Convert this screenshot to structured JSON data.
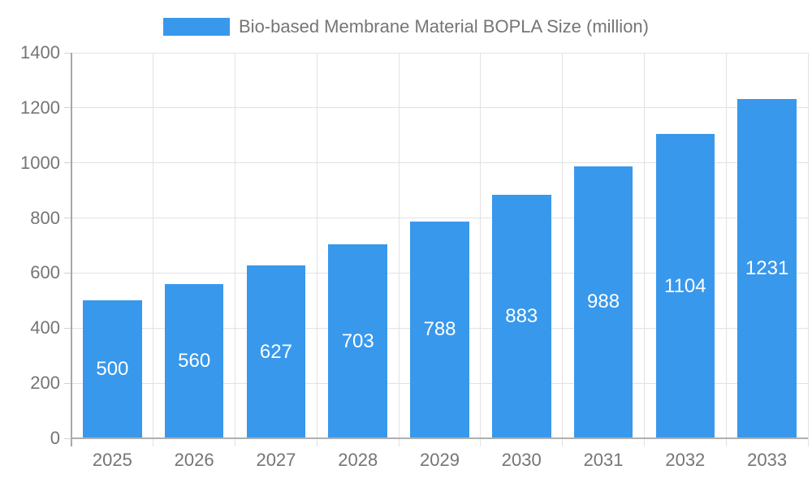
{
  "legend": {
    "label": "Bio-based Membrane Material BOPLA Size (million)"
  },
  "chart_data": {
    "type": "bar",
    "title": "Bio-based Membrane Material BOPLA Size (million)",
    "categories": [
      "2025",
      "2026",
      "2027",
      "2028",
      "2029",
      "2030",
      "2031",
      "2032",
      "2033"
    ],
    "values": [
      500,
      560,
      627,
      703,
      788,
      883,
      988,
      1104,
      1231
    ],
    "xlabel": "",
    "ylabel": "",
    "ylim": [
      0,
      1400
    ],
    "yticks": [
      0,
      200,
      400,
      600,
      800,
      1000,
      1200,
      1400
    ],
    "grid": true,
    "legend_position": "top",
    "bar_color": "#3898ec",
    "value_label_color": "#ffffff",
    "axis_text_color": "#757575",
    "grid_color": "#e2e2e2",
    "axis_line_color": "#a8a8a8"
  }
}
